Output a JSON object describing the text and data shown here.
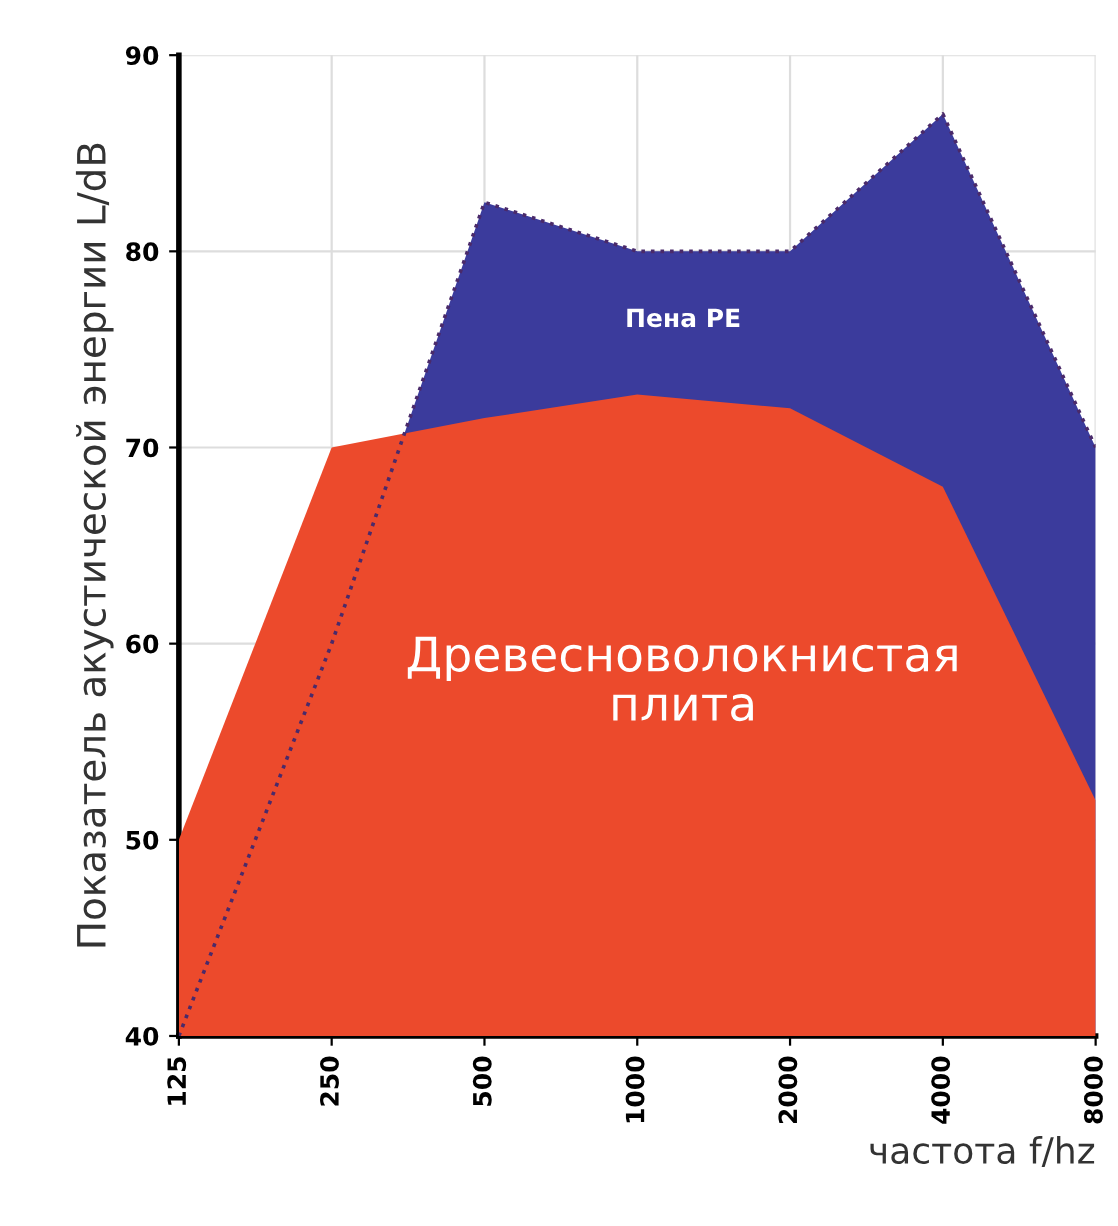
{
  "chart_data": {
    "type": "area",
    "xlabel": "частота f/hz",
    "ylabel": "Показатель акустической энергии L/dB",
    "categories": [
      "125",
      "250",
      "500",
      "1000",
      "2000",
      "4000",
      "8000"
    ],
    "series": [
      {
        "name": "Пена PE",
        "color": "#3b3b9c",
        "line_style": "dotted",
        "values": [
          40,
          60,
          82.5,
          80,
          80,
          87,
          70
        ]
      },
      {
        "name": "Древесноволокнистая плита",
        "color": "#ec4a2c",
        "values": [
          50,
          70,
          71.5,
          72.7,
          72,
          68,
          52
        ]
      }
    ],
    "ylim": [
      40,
      90
    ],
    "yticks": [
      40,
      50,
      60,
      70,
      80,
      90
    ],
    "grid": true,
    "legend": false
  }
}
